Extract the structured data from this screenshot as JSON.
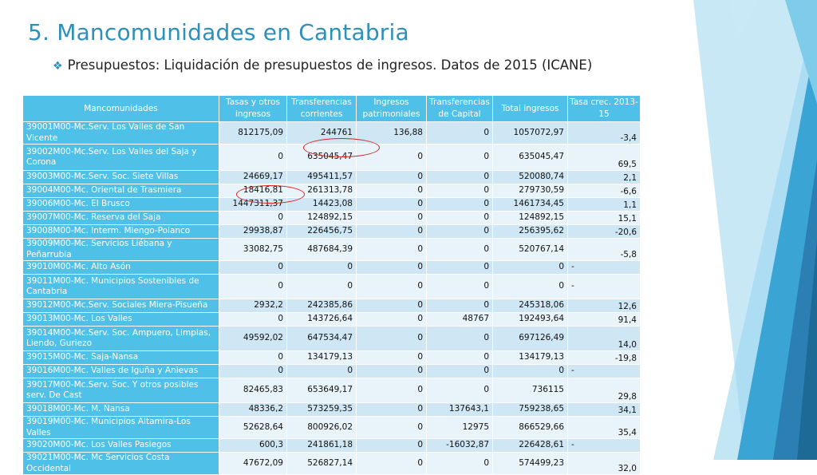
{
  "title": "5. Mancomunidades en Cantabria",
  "subtitle": "Presupuestos: Liquidación de presupuestos de ingresos. Datos de 2015 (ICANE)",
  "colors": {
    "accent": "#2e8fb8",
    "header_bg": "#4fc0e8",
    "row_odd": "#cfe7f4",
    "row_even": "#e8f3fa",
    "highlight": "#d9231f"
  },
  "table": {
    "headers": [
      "Mancomunidades",
      "Tasas y otros ingresos",
      "Transferencias corrientes",
      "Ingresos patrimoniales",
      "Transferencias de Capital",
      "Total ingresos",
      "Tasa crec. 2013-15"
    ],
    "rows": [
      [
        "39001M00-Mc.Serv. Los Valles de San Vicente",
        "812175,09",
        "244761",
        "136,88",
        "0",
        "1057072,97",
        "-3,4"
      ],
      [
        "39002M00-Mc.Serv. Los Valles del Saja y Corona",
        "0",
        "635045,47",
        "0",
        "0",
        "635045,47",
        "69,5"
      ],
      [
        "39003M00-Mc.Serv. Soc. Siete Villas",
        "24669,17",
        "495411,57",
        "0",
        "0",
        "520080,74",
        "2,1"
      ],
      [
        "39004M00-Mc. Oriental de Trasmiera",
        "18416,81",
        "261313,78",
        "0",
        "0",
        "279730,59",
        "-6,6"
      ],
      [
        "39006M00-Mc. El Brusco",
        "1447311,37",
        "14423,08",
        "0",
        "0",
        "1461734,45",
        "1,1"
      ],
      [
        "39007M00-Mc. Reserva del Saja",
        "0",
        "124892,15",
        "0",
        "0",
        "124892,15",
        "15,1"
      ],
      [
        "39008M00-Mc. Interm. Miengo-Polanco",
        "29938,87",
        "226456,75",
        "0",
        "0",
        "256395,62",
        "-20,6"
      ],
      [
        "39009M00-Mc. Servicios Liébana y Peñarrubia",
        "33082,75",
        "487684,39",
        "0",
        "0",
        "520767,14",
        "-5,8"
      ],
      [
        "39010M00-Mc. Alto Asón",
        "0",
        "0",
        "0",
        "0",
        "0",
        "-"
      ],
      [
        "39011M00-Mc. Municipios Sostenibles de Cantabria",
        "0",
        "0",
        "0",
        "0",
        "0",
        "-"
      ],
      [
        "39012M00-Mc.Serv. Sociales Miera-Pisueña",
        "2932,2",
        "242385,86",
        "0",
        "0",
        "245318,06",
        "12,6"
      ],
      [
        "39013M00-Mc. Los Valles",
        "0",
        "143726,64",
        "0",
        "48767",
        "192493,64",
        "91,4"
      ],
      [
        "39014M00-Mc.Serv. Soc. Ampuero, Limpias, Liendo, Guriezo",
        "49592,02",
        "647534,47",
        "0",
        "0",
        "697126,49",
        "14,0"
      ],
      [
        "39015M00-Mc. Saja-Nansa",
        "0",
        "134179,13",
        "0",
        "0",
        "134179,13",
        "-19,8"
      ],
      [
        "39016M00-Mc. Valles de Iguña y Anievas",
        "0",
        "0",
        "0",
        "0",
        "0",
        "-"
      ],
      [
        "39017M00-Mc.Serv. Soc. Y otros posibles serv. De Cast",
        "82465,83",
        "653649,17",
        "0",
        "0",
        "736115",
        "29,8"
      ],
      [
        "39018M00-Mc. M. Nansa",
        "48336,2",
        "573259,35",
        "0",
        "137643,1",
        "759238,65",
        "34,1"
      ],
      [
        "39019M00-Mc. Municipios Altamira-Los Valles",
        "52628,64",
        "800926,02",
        "0",
        "12975",
        "866529,66",
        "35,4"
      ],
      [
        "39020M00-Mc. Los Valles Pasiegos",
        "600,3",
        "241861,18",
        "0",
        "-16032,87",
        "226428,61",
        "-"
      ],
      [
        "39021M00-Mc. Mc Servicios Costa Occidental",
        "47672,09",
        "526827,14",
        "0",
        "0",
        "574499,23",
        "32,0"
      ]
    ]
  }
}
